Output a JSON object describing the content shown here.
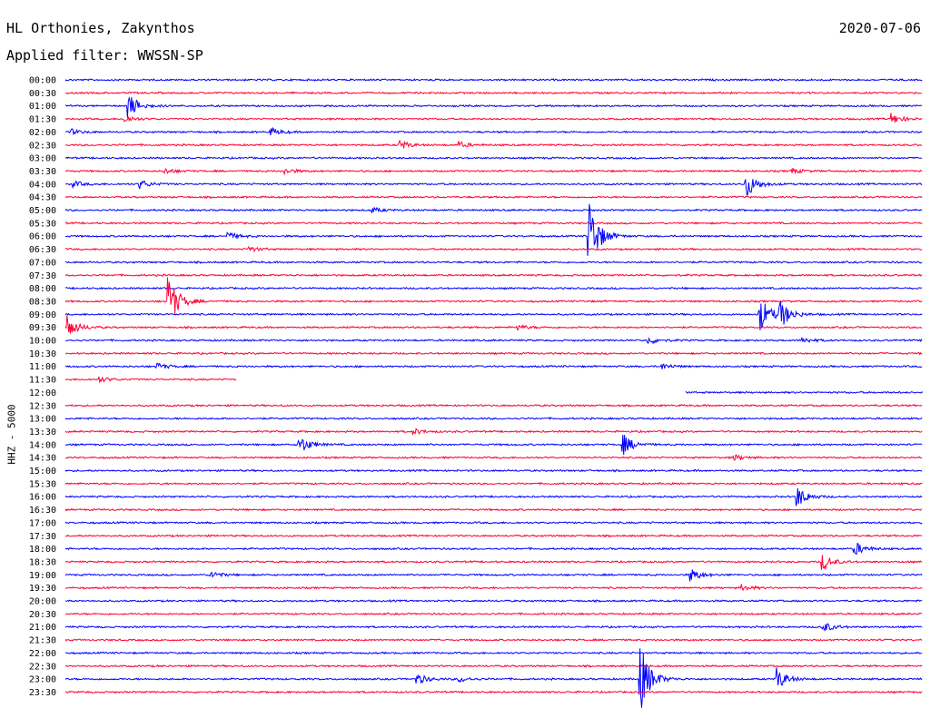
{
  "header": {
    "station": "HL Orthonies, Zakynthos",
    "filter": "Applied filter: WWSSN-SP",
    "date": "2020-07-06"
  },
  "colors": {
    "even_rows": "#0000ff",
    "odd_rows": "#ff0033",
    "background": "#ffffff"
  },
  "chart_data": {
    "type": "line",
    "title": "HL Orthonies, Zakynthos",
    "subtitle": "Applied filter: WWSSN-SP",
    "date": "2020-07-06",
    "ylabel": "HHZ - 5000",
    "xlabel": "",
    "x_unit": "minutes within half-hour row",
    "xlim": [
      0,
      30
    ],
    "categories": [
      "00:00",
      "00:30",
      "01:00",
      "01:30",
      "02:00",
      "02:30",
      "03:00",
      "03:30",
      "04:00",
      "04:30",
      "05:00",
      "05:30",
      "06:00",
      "06:30",
      "07:00",
      "07:30",
      "08:00",
      "08:30",
      "09:00",
      "09:30",
      "10:00",
      "10:30",
      "11:00",
      "11:30",
      "12:00",
      "12:30",
      "13:00",
      "13:30",
      "14:00",
      "14:30",
      "15:00",
      "15:30",
      "16:00",
      "16:30",
      "17:00",
      "17:30",
      "18:00",
      "18:30",
      "19:00",
      "19:30",
      "20:00",
      "20:30",
      "21:00",
      "21:30",
      "22:00",
      "22:30",
      "23:00",
      "23:30"
    ],
    "gap": {
      "row": "11:30",
      "start_min": 6.0,
      "end_min": 21.7,
      "row2": "12:00",
      "end2_min": 21.7
    },
    "events": [
      {
        "row": "01:00",
        "minute": 2.2,
        "amplitude": 14
      },
      {
        "row": "01:30",
        "minute": 2.1,
        "amplitude": 4
      },
      {
        "row": "01:30",
        "minute": 28.9,
        "amplitude": 6
      },
      {
        "row": "02:00",
        "minute": 0.2,
        "amplitude": 3
      },
      {
        "row": "02:00",
        "minute": 7.2,
        "amplitude": 4
      },
      {
        "row": "02:30",
        "minute": 11.7,
        "amplitude": 5
      },
      {
        "row": "02:30",
        "minute": 13.8,
        "amplitude": 3
      },
      {
        "row": "03:30",
        "minute": 3.5,
        "amplitude": 3
      },
      {
        "row": "03:30",
        "minute": 7.7,
        "amplitude": 3
      },
      {
        "row": "03:30",
        "minute": 25.4,
        "amplitude": 3
      },
      {
        "row": "04:00",
        "minute": 0.3,
        "amplitude": 3
      },
      {
        "row": "04:00",
        "minute": 2.6,
        "amplitude": 5
      },
      {
        "row": "04:00",
        "minute": 23.8,
        "amplitude": 16
      },
      {
        "row": "05:00",
        "minute": 10.7,
        "amplitude": 3
      },
      {
        "row": "06:00",
        "minute": 5.7,
        "amplitude": 4
      },
      {
        "row": "06:00",
        "minute": 18.3,
        "amplitude": 44
      },
      {
        "row": "06:30",
        "minute": 6.4,
        "amplitude": 3
      },
      {
        "row": "08:30",
        "minute": 3.6,
        "amplitude": 30
      },
      {
        "row": "09:00",
        "minute": 24.3,
        "amplitude": 20
      },
      {
        "row": "09:00",
        "minute": 25.0,
        "amplitude": 15
      },
      {
        "row": "09:30",
        "minute": 0.1,
        "amplitude": 12
      },
      {
        "row": "09:30",
        "minute": 15.8,
        "amplitude": 3
      },
      {
        "row": "10:00",
        "minute": 20.4,
        "amplitude": 4
      },
      {
        "row": "10:00",
        "minute": 25.8,
        "amplitude": 3
      },
      {
        "row": "11:00",
        "minute": 3.2,
        "amplitude": 4
      },
      {
        "row": "11:00",
        "minute": 20.9,
        "amplitude": 3
      },
      {
        "row": "11:30",
        "minute": 1.2,
        "amplitude": 3
      },
      {
        "row": "13:30",
        "minute": 12.2,
        "amplitude": 3
      },
      {
        "row": "14:00",
        "minute": 8.2,
        "amplitude": 10
      },
      {
        "row": "14:00",
        "minute": 19.5,
        "amplitude": 12
      },
      {
        "row": "14:30",
        "minute": 23.4,
        "amplitude": 3
      },
      {
        "row": "16:00",
        "minute": 25.6,
        "amplitude": 12
      },
      {
        "row": "18:00",
        "minute": 27.6,
        "amplitude": 8
      },
      {
        "row": "18:30",
        "minute": 26.5,
        "amplitude": 9
      },
      {
        "row": "19:00",
        "minute": 5.1,
        "amplitude": 4
      },
      {
        "row": "19:00",
        "minute": 21.9,
        "amplitude": 7
      },
      {
        "row": "19:30",
        "minute": 23.7,
        "amplitude": 3
      },
      {
        "row": "21:00",
        "minute": 26.5,
        "amplitude": 6
      },
      {
        "row": "23:00",
        "minute": 12.3,
        "amplitude": 6
      },
      {
        "row": "23:00",
        "minute": 13.8,
        "amplitude": 3
      },
      {
        "row": "23:00",
        "minute": 20.1,
        "amplitude": 40
      },
      {
        "row": "23:00",
        "minute": 24.9,
        "amplitude": 12
      }
    ]
  }
}
